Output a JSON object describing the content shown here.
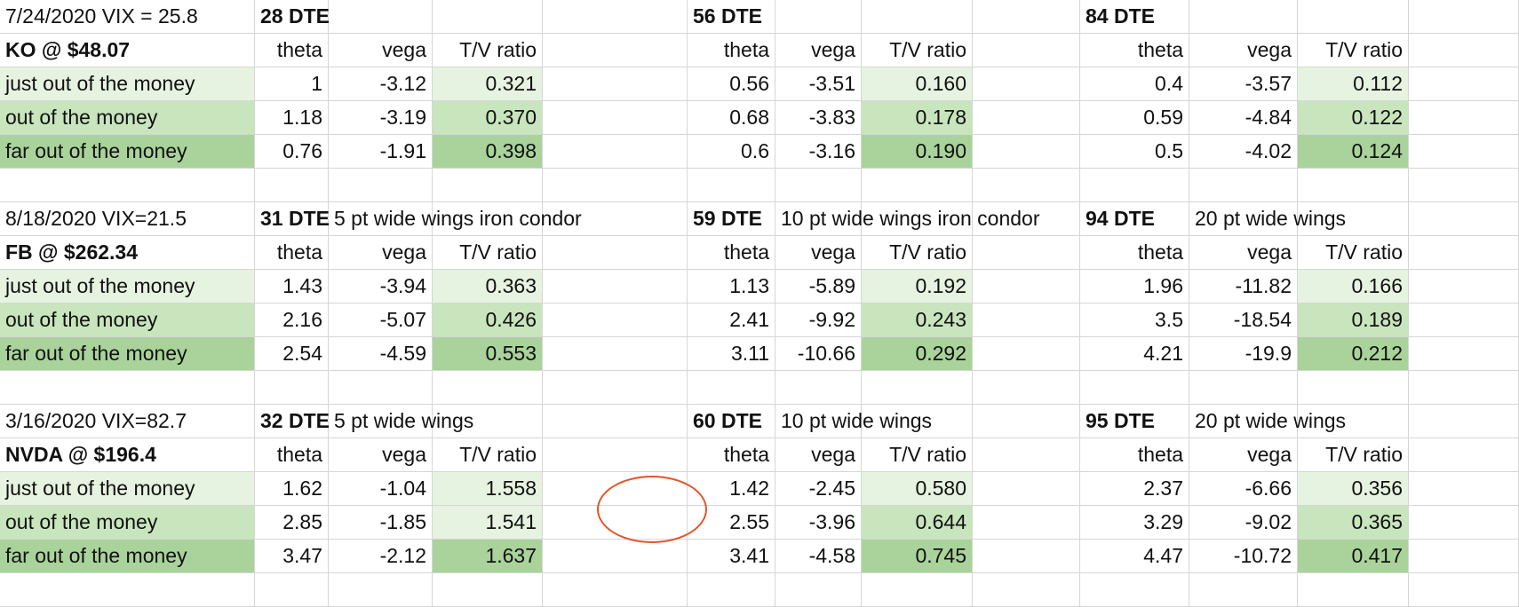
{
  "sheet": {
    "blocks": [
      {
        "header": "7/24/2020 VIX = 25.8",
        "ticker": "KO @ $48.07",
        "groups": [
          {
            "dte": "28 DTE",
            "note": ""
          },
          {
            "dte": "56 DTE",
            "note": ""
          },
          {
            "dte": "84 DTE",
            "note": ""
          }
        ],
        "col_headers": {
          "theta": "theta",
          "vega": "vega",
          "ratio": "T/V ratio"
        },
        "rows": [
          {
            "label": "just out of the money",
            "values": [
              [
                "1",
                "-3.12",
                "0.321"
              ],
              [
                "0.56",
                "-3.51",
                "0.160"
              ],
              [
                "0.4",
                "-3.57",
                "0.112"
              ]
            ]
          },
          {
            "label": "out of the money",
            "values": [
              [
                "1.18",
                "-3.19",
                "0.370"
              ],
              [
                "0.68",
                "-3.83",
                "0.178"
              ],
              [
                "0.59",
                "-4.84",
                "0.122"
              ]
            ]
          },
          {
            "label": "far out of the money",
            "values": [
              [
                "0.76",
                "-1.91",
                "0.398"
              ],
              [
                "0.6",
                "-3.16",
                "0.190"
              ],
              [
                "0.5",
                "-4.02",
                "0.124"
              ]
            ]
          }
        ]
      },
      {
        "header": "8/18/2020 VIX=21.5",
        "ticker": "FB @ $262.34",
        "groups": [
          {
            "dte": "31 DTE",
            "note": "5 pt wide wings iron condor"
          },
          {
            "dte": "59 DTE",
            "note": "10 pt wide wings iron condor"
          },
          {
            "dte": "94 DTE",
            "note": "20 pt wide wings"
          }
        ],
        "col_headers": {
          "theta": "theta",
          "vega": "vega",
          "ratio": "T/V ratio"
        },
        "rows": [
          {
            "label": "just out of the money",
            "values": [
              [
                "1.43",
                "-3.94",
                "0.363"
              ],
              [
                "1.13",
                "-5.89",
                "0.192"
              ],
              [
                "1.96",
                "-11.82",
                "0.166"
              ]
            ]
          },
          {
            "label": "out of the money",
            "values": [
              [
                "2.16",
                "-5.07",
                "0.426"
              ],
              [
                "2.41",
                "-9.92",
                "0.243"
              ],
              [
                "3.5",
                "-18.54",
                "0.189"
              ]
            ]
          },
          {
            "label": "far out of the money",
            "values": [
              [
                "2.54",
                "-4.59",
                "0.553"
              ],
              [
                "3.11",
                "-10.66",
                "0.292"
              ],
              [
                "4.21",
                "-19.9",
                "0.212"
              ]
            ]
          }
        ]
      },
      {
        "header": "3/16/2020  VIX=82.7",
        "ticker": "NVDA @ $196.4",
        "groups": [
          {
            "dte": "32 DTE",
            "note": "5 pt wide wings"
          },
          {
            "dte": "60 DTE",
            "note": "10 pt wide wings"
          },
          {
            "dte": "95 DTE",
            "note": "20 pt wide wings"
          }
        ],
        "col_headers": {
          "theta": "theta",
          "vega": "vega",
          "ratio": "T/V ratio"
        },
        "rows": [
          {
            "label": "just out of the money",
            "values": [
              [
                "1.62",
                "-1.04",
                "1.558"
              ],
              [
                "1.42",
                "-2.45",
                "0.580"
              ],
              [
                "2.37",
                "-6.66",
                "0.356"
              ]
            ]
          },
          {
            "label": "out of the money",
            "values": [
              [
                "2.85",
                "-1.85",
                "1.541"
              ],
              [
                "2.55",
                "-3.96",
                "0.644"
              ],
              [
                "3.29",
                "-9.02",
                "0.365"
              ]
            ]
          },
          {
            "label": "far out of the money",
            "values": [
              [
                "3.47",
                "-2.12",
                "1.637"
              ],
              [
                "3.41",
                "-4.58",
                "0.745"
              ],
              [
                "4.47",
                "-10.72",
                "0.417"
              ]
            ]
          }
        ]
      }
    ],
    "colors": {
      "light_green": "#e6f3e0",
      "medium_green": "#c8e5bd",
      "dark_green": "#a9d39a",
      "circle_annotation": "#e2552b"
    }
  }
}
